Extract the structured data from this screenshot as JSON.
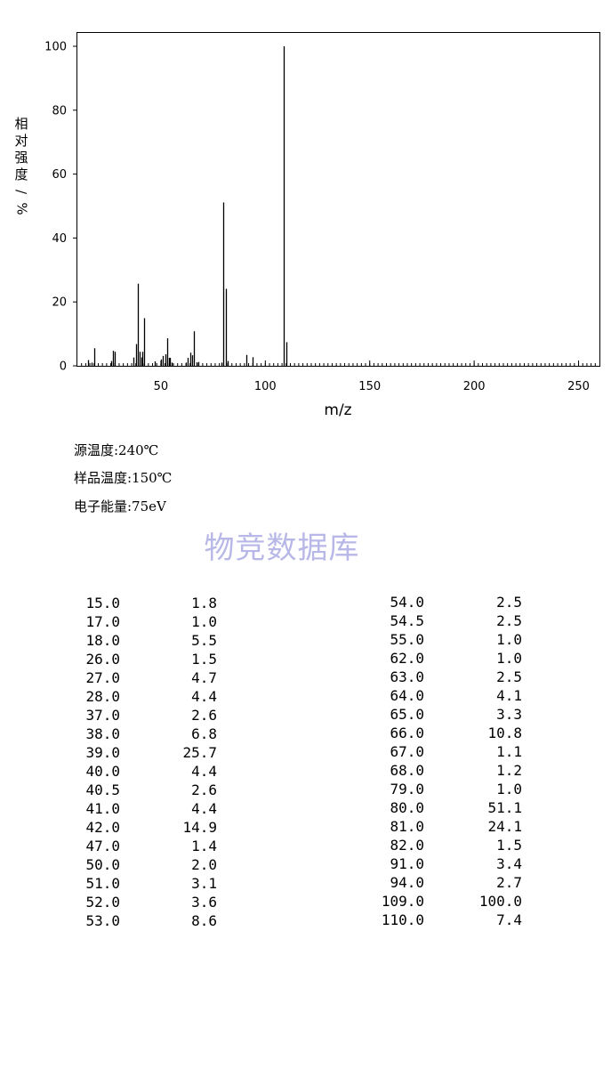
{
  "chart_data": {
    "type": "bar",
    "xlabel": "m/z",
    "ylabel": "相对强度/%",
    "xlim": [
      10,
      260
    ],
    "ylim": [
      0,
      104
    ],
    "xticks": [
      50,
      100,
      150,
      200,
      250
    ],
    "yticks": [
      0,
      20,
      40,
      60,
      80,
      100
    ],
    "grid": false,
    "peaks": [
      {
        "x": 15.0,
        "y": 1.8
      },
      {
        "x": 17.0,
        "y": 1.0
      },
      {
        "x": 18.0,
        "y": 5.5
      },
      {
        "x": 26.0,
        "y": 1.5
      },
      {
        "x": 27.0,
        "y": 4.7
      },
      {
        "x": 28.0,
        "y": 4.4
      },
      {
        "x": 37.0,
        "y": 2.6
      },
      {
        "x": 38.0,
        "y": 6.8
      },
      {
        "x": 39.0,
        "y": 25.7
      },
      {
        "x": 40.0,
        "y": 4.4
      },
      {
        "x": 40.5,
        "y": 2.6
      },
      {
        "x": 41.0,
        "y": 4.4
      },
      {
        "x": 42.0,
        "y": 14.9
      },
      {
        "x": 47.0,
        "y": 1.4
      },
      {
        "x": 50.0,
        "y": 2.0
      },
      {
        "x": 51.0,
        "y": 3.1
      },
      {
        "x": 52.0,
        "y": 3.6
      },
      {
        "x": 53.0,
        "y": 8.6
      },
      {
        "x": 54.0,
        "y": 2.5
      },
      {
        "x": 54.5,
        "y": 2.5
      },
      {
        "x": 55.0,
        "y": 1.0
      },
      {
        "x": 62.0,
        "y": 1.0
      },
      {
        "x": 63.0,
        "y": 2.5
      },
      {
        "x": 64.0,
        "y": 4.1
      },
      {
        "x": 65.0,
        "y": 3.3
      },
      {
        "x": 66.0,
        "y": 10.8
      },
      {
        "x": 67.0,
        "y": 1.1
      },
      {
        "x": 68.0,
        "y": 1.2
      },
      {
        "x": 79.0,
        "y": 1.0
      },
      {
        "x": 80.0,
        "y": 51.1
      },
      {
        "x": 81.0,
        "y": 24.1
      },
      {
        "x": 82.0,
        "y": 1.5
      },
      {
        "x": 91.0,
        "y": 3.4
      },
      {
        "x": 94.0,
        "y": 2.7
      },
      {
        "x": 109.0,
        "y": 100.0
      },
      {
        "x": 110.0,
        "y": 7.4
      }
    ]
  },
  "conditions": {
    "source_temp": "源温度:240℃",
    "sample_temp": "样品温度:150℃",
    "electron_energy": "电子能量:75eV"
  },
  "watermark": "物竞数据库",
  "table": {
    "left": [
      {
        "mz": "15.0",
        "ab": "1.8"
      },
      {
        "mz": "17.0",
        "ab": "1.0"
      },
      {
        "mz": "18.0",
        "ab": "5.5"
      },
      {
        "mz": "26.0",
        "ab": "1.5"
      },
      {
        "mz": "27.0",
        "ab": "4.7"
      },
      {
        "mz": "28.0",
        "ab": "4.4"
      },
      {
        "mz": "37.0",
        "ab": "2.6"
      },
      {
        "mz": "38.0",
        "ab": "6.8"
      },
      {
        "mz": "39.0",
        "ab": "25.7"
      },
      {
        "mz": "40.0",
        "ab": "4.4"
      },
      {
        "mz": "40.5",
        "ab": "2.6"
      },
      {
        "mz": "41.0",
        "ab": "4.4"
      },
      {
        "mz": "42.0",
        "ab": "14.9"
      },
      {
        "mz": "47.0",
        "ab": "1.4"
      },
      {
        "mz": "50.0",
        "ab": "2.0"
      },
      {
        "mz": "51.0",
        "ab": "3.1"
      },
      {
        "mz": "52.0",
        "ab": "3.6"
      },
      {
        "mz": "53.0",
        "ab": "8.6"
      }
    ],
    "right": [
      {
        "mz": "54.0",
        "ab": "2.5"
      },
      {
        "mz": "54.5",
        "ab": "2.5"
      },
      {
        "mz": "55.0",
        "ab": "1.0"
      },
      {
        "mz": "62.0",
        "ab": "1.0"
      },
      {
        "mz": "63.0",
        "ab": "2.5"
      },
      {
        "mz": "64.0",
        "ab": "4.1"
      },
      {
        "mz": "65.0",
        "ab": "3.3"
      },
      {
        "mz": "66.0",
        "ab": "10.8"
      },
      {
        "mz": "67.0",
        "ab": "1.1"
      },
      {
        "mz": "68.0",
        "ab": "1.2"
      },
      {
        "mz": "79.0",
        "ab": "1.0"
      },
      {
        "mz": "80.0",
        "ab": "51.1"
      },
      {
        "mz": "81.0",
        "ab": "24.1"
      },
      {
        "mz": "82.0",
        "ab": "1.5"
      },
      {
        "mz": "91.0",
        "ab": "3.4"
      },
      {
        "mz": "94.0",
        "ab": "2.7"
      },
      {
        "mz": "109.0",
        "ab": "100.0"
      },
      {
        "mz": "110.0",
        "ab": "7.4"
      }
    ]
  }
}
